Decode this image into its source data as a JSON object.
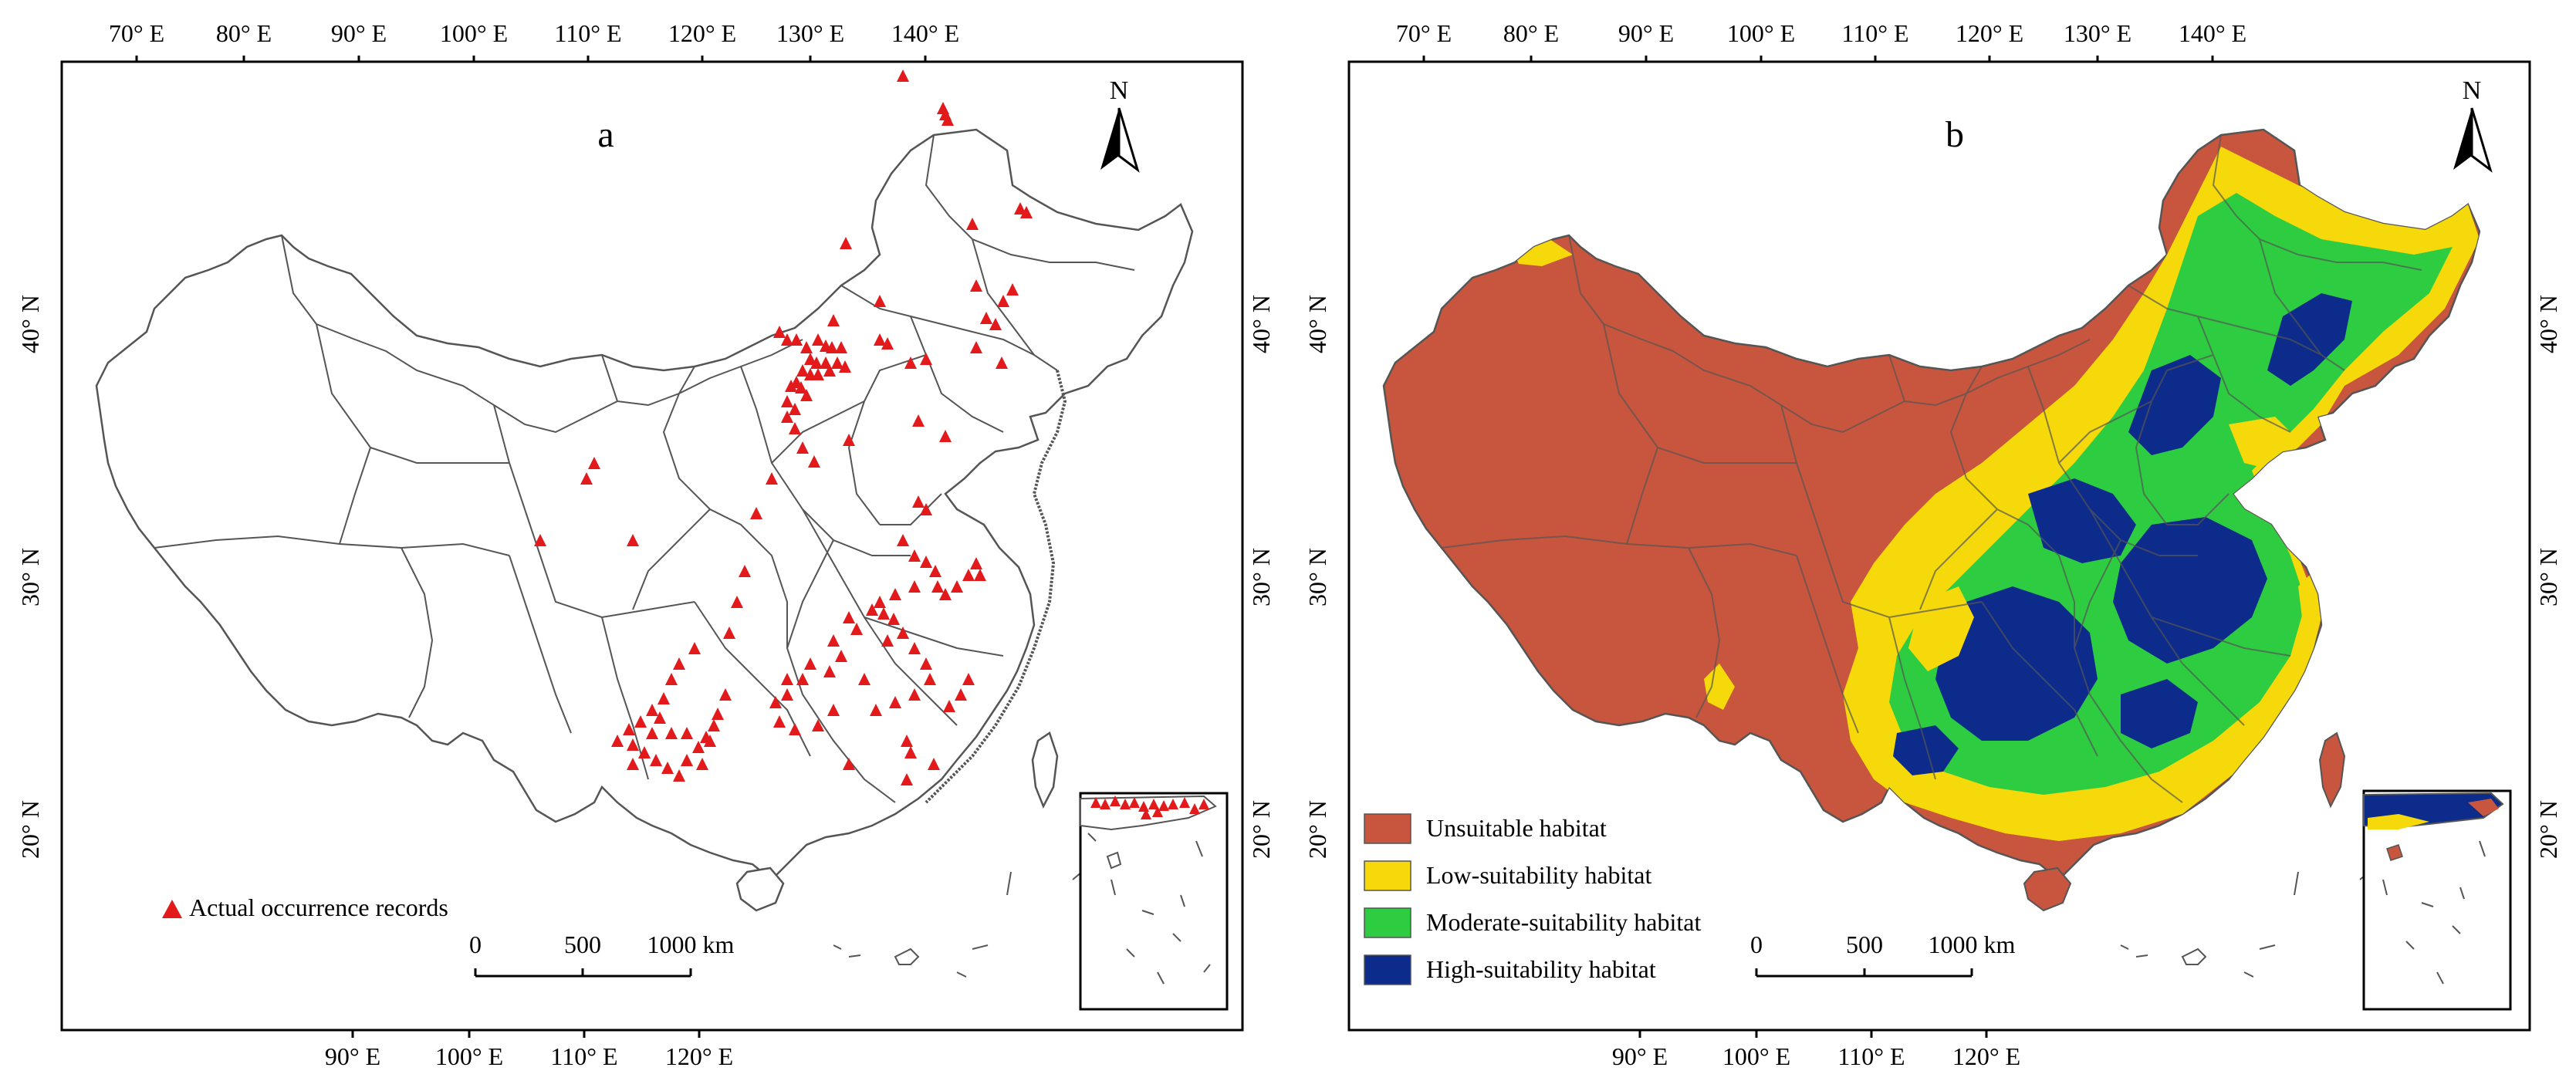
{
  "panel_a": {
    "label": "a",
    "north_label": "N",
    "top_ticks": [
      "70° E",
      "80° E",
      "90° E",
      "100° E",
      "110° E",
      "120° E",
      "130° E",
      "140° E"
    ],
    "bottom_ticks": [
      "90° E",
      "100° E",
      "110° E",
      "120° E"
    ],
    "left_ticks": [
      "40° N",
      "30° N",
      "20° N"
    ],
    "right_ticks": [
      "40° N",
      "30° N",
      "20° N"
    ],
    "legend": {
      "label": "Actual occurrence records",
      "symbol_color": "#e31a1c"
    },
    "scale_bar": {
      "labels": [
        "0",
        "500",
        "1000 km"
      ]
    },
    "boundary_color": "#555555",
    "occurrence_records_shown": 140
  },
  "panel_b": {
    "label": "b",
    "north_label": "N",
    "top_ticks": [
      "70° E",
      "80° E",
      "90° E",
      "100° E",
      "110° E",
      "120° E",
      "130° E",
      "140° E"
    ],
    "bottom_ticks": [
      "90° E",
      "100° E",
      "110° E",
      "120° E"
    ],
    "left_ticks": [
      "40° N",
      "30° N",
      "20° N"
    ],
    "right_ticks": [
      "40° N",
      "30° N",
      "20° N"
    ],
    "legend": [
      {
        "label": "Unsuitable habitat",
        "color": "#c8553d"
      },
      {
        "label": "Low-suitability habitat",
        "color": "#f5d90a"
      },
      {
        "label": "Moderate-suitability habitat",
        "color": "#2ecc40"
      },
      {
        "label": "High-suitability habitat",
        "color": "#0d2b8a"
      }
    ],
    "scale_bar": {
      "labels": [
        "0",
        "500",
        "1000 km"
      ]
    }
  }
}
